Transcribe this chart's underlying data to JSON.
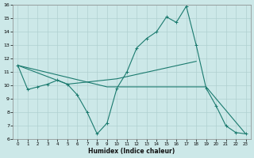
{
  "xlabel": "Humidex (Indice chaleur)",
  "x_values": [
    0,
    1,
    2,
    3,
    4,
    5,
    6,
    7,
    8,
    9,
    10,
    11,
    12,
    13,
    14,
    15,
    16,
    17,
    18,
    19,
    20,
    21,
    22,
    23
  ],
  "line1_y": [
    11.5,
    9.7,
    9.9,
    10.1,
    10.4,
    10.1,
    9.3,
    8.0,
    6.4,
    7.2,
    9.8,
    11.0,
    12.8,
    13.5,
    14.0,
    15.1,
    14.7,
    15.9,
    13.0,
    9.8,
    8.5,
    7.0,
    6.5,
    6.4
  ],
  "line2_x": [
    0,
    5,
    10,
    18
  ],
  "line2_y": [
    11.5,
    10.1,
    10.5,
    11.8
  ],
  "line3_x": [
    0,
    9,
    19,
    23
  ],
  "line3_y": [
    11.5,
    9.9,
    9.9,
    6.4
  ],
  "line_color": "#1a7a6e",
  "bg_color": "#cce8e8",
  "grid_color": "#b0d0d0",
  "ylim": [
    6,
    16
  ],
  "xlim": [
    -0.5,
    23.5
  ],
  "yticks": [
    6,
    7,
    8,
    9,
    10,
    11,
    12,
    13,
    14,
    15,
    16
  ],
  "xticks": [
    0,
    1,
    2,
    3,
    4,
    5,
    6,
    7,
    8,
    9,
    10,
    11,
    12,
    13,
    14,
    15,
    16,
    17,
    18,
    19,
    20,
    21,
    22,
    23
  ]
}
